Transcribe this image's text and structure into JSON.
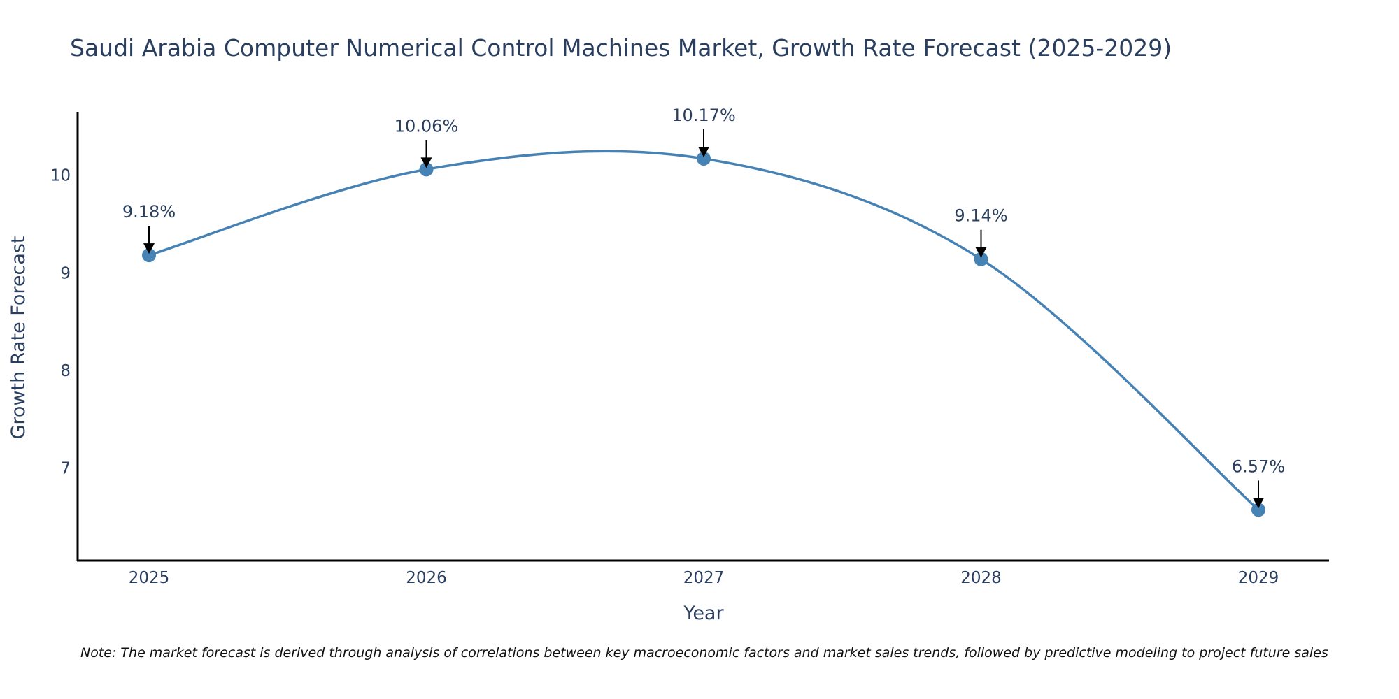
{
  "chart_data": {
    "type": "line",
    "title": "Saudi Arabia Computer Numerical Control Machines Market, Growth Rate Forecast (2025-2029)",
    "xlabel": "Year",
    "ylabel": "Growth Rate Forecast",
    "categories": [
      "2025",
      "2026",
      "2027",
      "2028",
      "2029"
    ],
    "series": [
      {
        "name": "Growth Rate Forecast",
        "values": [
          9.18,
          10.06,
          10.17,
          9.14,
          6.57
        ],
        "labels": [
          "9.18%",
          "10.06%",
          "10.17%",
          "9.14%",
          "6.57%"
        ]
      }
    ],
    "yticks": [
      7,
      8,
      9,
      10
    ],
    "ylim": [
      6.05,
      10.65
    ],
    "line_shape": "spline",
    "grid": false,
    "annotations": "arrow above each point",
    "note": "Note: The market forecast is derived through analysis of correlations between key macroeconomic factors and market sales trends, followed by predictive modeling to project future sales",
    "colors": {
      "line": "#4682b4",
      "text": "#2a3f5f",
      "axis": "#000000",
      "arrow": "#000000"
    }
  }
}
